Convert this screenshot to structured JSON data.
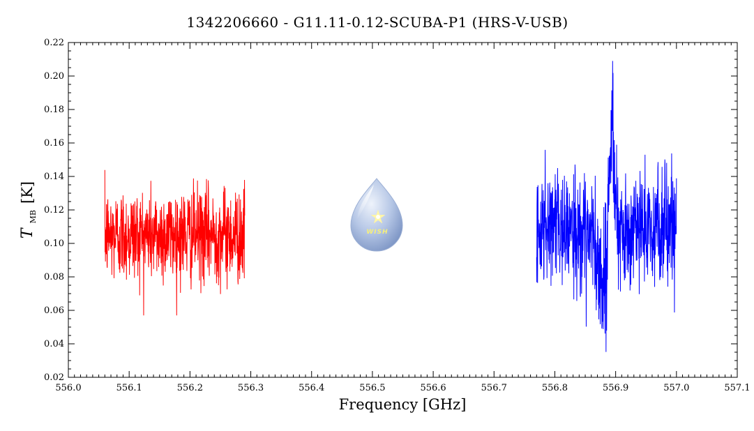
{
  "chart_data": {
    "type": "line",
    "title": "1342206660 - G11.11-0.12-SCUBA-P1 (HRS-V-USB)",
    "xlabel": "Frequency [GHz]",
    "ylabel_main": "T",
    "ylabel_sub": "MB",
    "ylabel_unit": "[K]",
    "xlim": [
      556.0,
      557.1
    ],
    "ylim": [
      0.02,
      0.22
    ],
    "xticks": [
      "556.0",
      "556.1",
      "556.2",
      "556.3",
      "556.4",
      "556.5",
      "556.6",
      "556.7",
      "556.8",
      "556.9",
      "557.0",
      "557.1"
    ],
    "yticks": [
      "0.02",
      "0.04",
      "0.06",
      "0.08",
      "0.10",
      "0.12",
      "0.14",
      "0.16",
      "0.18",
      "0.20",
      "0.22"
    ],
    "grid": false,
    "series": [
      {
        "color": "#ff0000",
        "x_range": [
          556.06,
          556.29
        ],
        "points": 700,
        "mean": 0.105,
        "noise": 0.014,
        "min": 0.057,
        "max": 0.159
      },
      {
        "color": "#0000ff",
        "x_range": [
          556.77,
          557.0
        ],
        "points": 700,
        "mean": 0.108,
        "noise": 0.018,
        "min": 0.034,
        "max": 0.209,
        "features": [
          {
            "center": 556.88,
            "width": 0.006,
            "amplitude": -0.045
          },
          {
            "center": 556.893,
            "width": 0.005,
            "amplitude": 0.06
          }
        ]
      }
    ]
  },
  "logo": {
    "name": "WISH",
    "text": "WISH",
    "colors": {
      "drop_top": "#e9eef8",
      "drop_bottom": "#8fa6cf",
      "star": "#fff7a8"
    }
  }
}
